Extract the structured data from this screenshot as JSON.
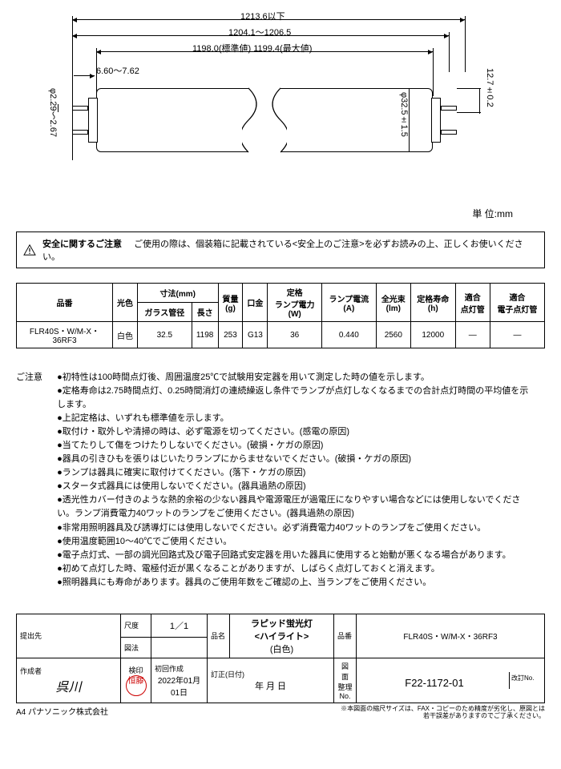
{
  "diagram": {
    "dim1": "1213.6以下",
    "dim2": "1204.1～1206.5",
    "dim3": "1198.0(標準値)  1199.4(最大値)",
    "dim4": "6.60～7.62",
    "dim_dia": "φ32.5±1.5",
    "dim_right": "12.7±0.2",
    "dim_left": "φ2.29～2.67",
    "unit": "単 位:mm"
  },
  "safety": {
    "title": "安全に関するご注意",
    "text": "ご使用の際は、個装箱に記載されている<安全上のご注意>を必ずお読みの上、正しくお使いください。"
  },
  "spec": {
    "headers": {
      "model": "品番",
      "color": "光色",
      "dim": "寸法(mm)",
      "dia": "ガラス管径",
      "len": "長さ",
      "mass": "質量\n(g)",
      "base": "口金",
      "pwr": "定格\nランプ電力\n(W)",
      "cur": "ランプ電流\n(A)",
      "flux": "全光束\n(lm)",
      "life": "定格寿命\n(h)",
      "starter": "適合\n点灯管",
      "estarter": "適合\n電子点灯管"
    },
    "row": {
      "model": "FLR40S・W/M-X・36RF3",
      "color": "白色",
      "dia": "32.5",
      "len": "1198",
      "mass": "253",
      "base": "G13",
      "pwr": "36",
      "cur": "0.440",
      "flux": "2560",
      "life": "12000",
      "starter": "—",
      "estarter": "—"
    }
  },
  "notes": {
    "label": "ご注意",
    "items": [
      "初特性は100時間点灯後、周囲温度25℃で試験用安定器を用いて測定した時の値を示します。",
      "定格寿命は2.75時間点灯、0.25時間消灯の連続繰返し条件でランプが点灯しなくなるまでの合計点灯時間の平均値を示します。",
      "上記定格は、いずれも標準値を示します。",
      "取付け・取外しや清掃の時は、必ず電源を切ってください。(感電の原因)",
      "当てたりして傷をつけたりしないでください。(破損・ケガの原因)",
      "器具の引きひもを張りはじいたりランプにからませないでください。(破損・ケガの原因)",
      "ランプは器具に確実に取付けてください。(落下・ケガの原因)",
      "スタータ式器具には使用しないでください。(器具過熱の原因)",
      "透光性カバー付きのような熱的余裕の少ない器具や電源電圧が過電圧になりやすい場合などには使用しないでください。ランプ消費電力40ワットのランプをご使用ください。(器具過熱の原因)",
      "非常用照明器具及び誘導灯には使用しないでください。必ず消費電力40ワットのランプをご使用ください。",
      "使用温度範囲10～40℃でご使用ください。",
      "電子点灯式、一部の調光回路式及び電子回路式安定器を用いた器具に使用すると始動が悪くなる場合があります。",
      "初めて点灯した時、電極付近が黒くなることがありますが、しばらく点灯しておくと消えます。",
      "照明器具にも寿命があります。器具のご使用年数をご確認の上、当ランプをご使用ください。"
    ]
  },
  "title_block": {
    "submit_to": "提出先",
    "scale_l": "尺度",
    "scale_v": "1／1",
    "method_l": "図法",
    "name_l": "品名",
    "name_v1": "ラピッド蛍光灯",
    "name_v2": "<ハイライト>",
    "name_v3": "(白色)",
    "model_l": "品番",
    "model_v": "FLR40S・W/M-X・36RF3",
    "author_l": "作成者",
    "author_v": "呉川",
    "seal_l": "検印",
    "seal_v": "恒藤",
    "created_l": "初回作成",
    "created_v": "2022年01月01日",
    "rev_l": "訂正(日付)",
    "rev_v": "年 月 日",
    "dwg_l": "図 面\n整理No.",
    "dwg_v": "F22-1172-01",
    "revno_l": "改訂No."
  },
  "footer": {
    "left": "A4 パナソニック株式会社",
    "right1": "※本図面の縮尺サイズは、FAX・コピーのため精度が劣化し、原図とは",
    "right2": "若干誤差がありますのでご了承ください。"
  },
  "colors": {
    "line": "#000000",
    "stamp": "#cc0000"
  }
}
